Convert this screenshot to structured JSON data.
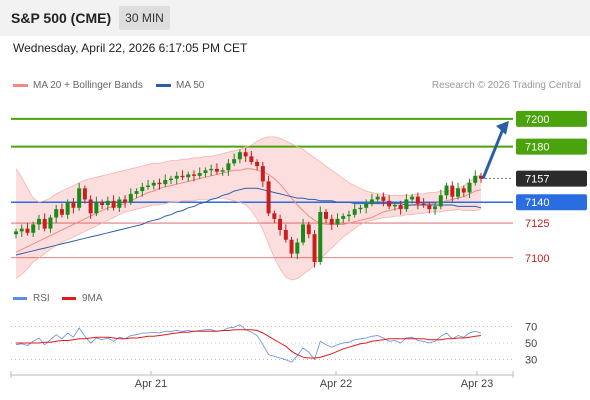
{
  "header": {
    "title": "S&P 500 (CME)",
    "timeframe": "30 MIN",
    "datetime": "Wednesday, April 22, 2026 6:17:05 PM CET"
  },
  "legend": {
    "bollinger": {
      "label": "MA 20 + Bollinger Bands",
      "color": "#f08c84"
    },
    "ma50": {
      "label": "MA 50",
      "color": "#2a5fa5"
    },
    "credit": "Research © 2026 Trading Central"
  },
  "rsi_legend": {
    "rsi": {
      "label": "RSI",
      "color": "#5b8ee0"
    },
    "ma9": {
      "label": "9MA",
      "color": "#e21b1b"
    }
  },
  "colors": {
    "up": "#1a8a1a",
    "down": "#c81e1e",
    "resistance": "#4aa30c",
    "support": "#2a6de0",
    "target_line": "#e05555",
    "current_badge": "#2b2b2b",
    "arrow": "#2a5fa5",
    "band_fill": "#fbd0d0"
  },
  "chart_data": {
    "type": "candlestick",
    "instrument": "S&P 500 (CME)",
    "interval": "30 MIN",
    "ylim": [
      7084,
      7210
    ],
    "x_ticks": [
      "Apr 21",
      "Apr 22",
      "Apr 23"
    ],
    "current_price": "7157",
    "levels": [
      {
        "value": 7200,
        "label": "7200",
        "kind": "resistance"
      },
      {
        "value": 7180,
        "label": "7180",
        "kind": "resistance"
      },
      {
        "value": 7140,
        "label": "7140",
        "kind": "pivot"
      },
      {
        "value": 7125,
        "label": "7125",
        "kind": "target"
      },
      {
        "value": 7100,
        "label": "7100",
        "kind": "target"
      }
    ],
    "forecast_arrow": {
      "from": 7157,
      "to": 7200
    },
    "close": [
      7119,
      7121,
      7118,
      7124,
      7128,
      7121,
      7129,
      7135,
      7131,
      7140,
      7136,
      7150,
      7142,
      7132,
      7140,
      7138,
      7141,
      7136,
      7142,
      7140,
      7146,
      7148,
      7151,
      7152,
      7154,
      7153,
      7156,
      7157,
      7159,
      7158,
      7160,
      7159,
      7161,
      7163,
      7164,
      7162,
      7163,
      7168,
      7171,
      7176,
      7173,
      7169,
      7166,
      7155,
      7132,
      7128,
      7120,
      7113,
      7103,
      7111,
      7124,
      7117,
      7097,
      7133,
      7128,
      7124,
      7128,
      7130,
      7131,
      7135,
      7136,
      7139,
      7142,
      7144,
      7141,
      7137,
      7138,
      7135,
      7142,
      7144,
      7139,
      7138,
      7135,
      7137,
      7145,
      7152,
      7144,
      7150,
      7147,
      7154,
      7159,
      7157
    ],
    "ma20": [
      7104,
      7106,
      7108,
      7110,
      7112,
      7114,
      7116,
      7118,
      7120,
      7122,
      7124,
      7126,
      7128,
      7130,
      7132,
      7134,
      7136,
      7137,
      7138,
      7139,
      7141,
      7143,
      7145,
      7147,
      7148,
      7150,
      7151,
      7152,
      7153,
      7154,
      7155,
      7156,
      7157,
      7158,
      7159,
      7160,
      7161,
      7162,
      7163,
      7163,
      7164,
      7164,
      7163,
      7162,
      7160,
      7157,
      7153,
      7148,
      7143,
      7138,
      7134,
      7130,
      7127,
      7125,
      7124,
      7124,
      7124,
      7124,
      7125,
      7126,
      7127,
      7128,
      7129,
      7131,
      7133,
      7134,
      7135,
      7136,
      7137,
      7138,
      7139,
      7139,
      7139,
      7139,
      7140,
      7141,
      7142,
      7143,
      7144,
      7146,
      7148,
      7149
    ],
    "bb_upper": [
      7164,
      7158,
      7150,
      7143,
      7140,
      7141,
      7143,
      7146,
      7148,
      7150,
      7152,
      7154,
      7156,
      7157,
      7158,
      7159,
      7160,
      7161,
      7162,
      7163,
      7164,
      7165,
      7166,
      7167,
      7168,
      7168,
      7169,
      7170,
      7170,
      7171,
      7171,
      7172,
      7172,
      7173,
      7173,
      7174,
      7175,
      7176,
      7177,
      7178,
      7180,
      7181,
      7184,
      7186,
      7187,
      7187,
      7186,
      7184,
      7182,
      7180,
      7178,
      7175,
      7172,
      7169,
      7166,
      7163,
      7160,
      7157,
      7154,
      7152,
      7150,
      7148,
      7147,
      7146,
      7146,
      7145,
      7145,
      7145,
      7145,
      7145,
      7146,
      7146,
      7147,
      7147,
      7148,
      7148,
      7149,
      7150,
      7152,
      7155,
      7158,
      7160
    ],
    "bb_lower": [
      7085,
      7088,
      7092,
      7097,
      7100,
      7103,
      7106,
      7109,
      7111,
      7113,
      7115,
      7117,
      7119,
      7121,
      7123,
      7125,
      7127,
      7129,
      7131,
      7133,
      7134,
      7135,
      7136,
      7137,
      7138,
      7138,
      7139,
      7140,
      7140,
      7141,
      7141,
      7141,
      7142,
      7142,
      7142,
      7143,
      7143,
      7142,
      7141,
      7140,
      7138,
      7134,
      7128,
      7120,
      7110,
      7100,
      7092,
      7086,
      7084,
      7085,
      7088,
      7091,
      7095,
      7099,
      7103,
      7107,
      7111,
      7115,
      7118,
      7121,
      7124,
      7126,
      7127,
      7128,
      7129,
      7129,
      7130,
      7130,
      7131,
      7131,
      7132,
      7132,
      7133,
      7133,
      7133,
      7134,
      7134,
      7135,
      7134,
      7134,
      7134,
      7135
    ],
    "ma50": [
      7102,
      7103,
      7104,
      7105,
      7106,
      7107,
      7108,
      7109,
      7110,
      7111,
      7112,
      7113,
      7114,
      7115,
      7116,
      7117,
      7118,
      7119,
      7120,
      7121,
      7122,
      7123,
      7124,
      7126,
      7127,
      7128,
      7130,
      7131,
      7133,
      7134,
      7136,
      7137,
      7139,
      7140,
      7142,
      7143,
      7145,
      7146,
      7148,
      7149,
      7150,
      7150,
      7150,
      7149,
      7148,
      7147,
      7146,
      7145,
      7144,
      7143,
      7143,
      7142,
      7142,
      7141,
      7141,
      7141,
      7140,
      7140,
      7140,
      7139,
      7139,
      7139,
      7139,
      7139,
      7139,
      7139,
      7139,
      7139,
      7138,
      7138,
      7138,
      7138,
      7138,
      7138,
      7138,
      7138,
      7138,
      7137,
      7137,
      7137,
      7137,
      7136
    ],
    "rsi": {
      "ylim": [
        20,
        80
      ],
      "ticks": [
        "70",
        "50",
        "30"
      ],
      "rsi": [
        48,
        49,
        47,
        52,
        56,
        48,
        54,
        60,
        55,
        62,
        57,
        68,
        58,
        50,
        56,
        54,
        56,
        52,
        57,
        55,
        59,
        60,
        62,
        62,
        63,
        62,
        64,
        64,
        65,
        64,
        65,
        64,
        65,
        66,
        66,
        64,
        65,
        68,
        69,
        72,
        66,
        63,
        59,
        48,
        36,
        34,
        32,
        30,
        27,
        35,
        44,
        39,
        30,
        52,
        48,
        45,
        48,
        50,
        51,
        54,
        55,
        56,
        58,
        59,
        56,
        52,
        53,
        50,
        56,
        57,
        53,
        52,
        50,
        52,
        58,
        62,
        55,
        59,
        57,
        62,
        64,
        62
      ],
      "ma9": [
        50,
        50,
        50,
        50,
        50,
        51,
        51,
        52,
        53,
        53,
        54,
        55,
        55,
        56,
        57,
        57,
        57,
        56,
        55,
        55,
        56,
        56,
        57,
        58,
        58,
        59,
        60,
        61,
        62,
        63,
        63,
        64,
        64,
        64,
        64,
        64,
        65,
        65,
        66,
        66,
        66,
        66,
        65,
        62,
        58,
        54,
        50,
        46,
        40,
        36,
        33,
        32,
        32,
        33,
        35,
        37,
        40,
        43,
        45,
        47,
        49,
        50,
        52,
        53,
        54,
        55,
        55,
        55,
        55,
        55,
        55,
        55,
        54,
        54,
        54,
        55,
        55,
        56,
        56,
        57,
        58,
        59
      ]
    }
  }
}
